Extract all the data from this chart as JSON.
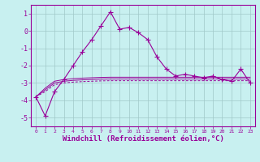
{
  "bg_color": "#c8f0f0",
  "grid_color": "#a0c8c8",
  "line_color": "#990099",
  "xlabel": "Windchill (Refroidissement éolien,°C)",
  "ylim": [
    -5.5,
    1.5
  ],
  "xlim": [
    -0.5,
    23.5
  ],
  "yticks": [
    1,
    0,
    -1,
    -2,
    -3,
    -4,
    -5
  ],
  "xticks": [
    0,
    1,
    2,
    3,
    4,
    5,
    6,
    7,
    8,
    9,
    10,
    11,
    12,
    13,
    14,
    15,
    16,
    17,
    18,
    19,
    20,
    21,
    22,
    23
  ],
  "x": [
    0,
    1,
    2,
    3,
    4,
    5,
    6,
    7,
    8,
    9,
    10,
    11,
    12,
    13,
    14,
    15,
    16,
    17,
    18,
    19,
    20,
    21,
    22,
    23
  ],
  "line1": [
    -3.8,
    -4.9,
    -3.5,
    -2.8,
    -2.0,
    -1.2,
    -0.5,
    0.3,
    1.1,
    0.1,
    0.2,
    -0.1,
    -0.5,
    -1.5,
    -2.2,
    -2.6,
    -2.5,
    -2.6,
    -2.7,
    -2.6,
    -2.8,
    -2.9,
    -2.2,
    -3.0
  ],
  "line2": [
    -3.8,
    -3.5,
    -3.1,
    -3.0,
    -2.95,
    -2.92,
    -2.9,
    -2.88,
    -2.87,
    -2.87,
    -2.87,
    -2.87,
    -2.87,
    -2.87,
    -2.87,
    -2.87,
    -2.87,
    -2.87,
    -2.87,
    -2.87,
    -2.87,
    -2.87,
    -2.87,
    -2.87
  ],
  "line3": [
    -3.8,
    -3.4,
    -3.0,
    -2.9,
    -2.85,
    -2.82,
    -2.8,
    -2.78,
    -2.77,
    -2.77,
    -2.77,
    -2.77,
    -2.77,
    -2.77,
    -2.77,
    -2.77,
    -2.77,
    -2.77,
    -2.77,
    -2.77,
    -2.77,
    -2.77,
    -2.77,
    -2.77
  ],
  "line4": [
    -3.8,
    -3.3,
    -2.9,
    -2.8,
    -2.75,
    -2.72,
    -2.7,
    -2.68,
    -2.67,
    -2.67,
    -2.67,
    -2.67,
    -2.67,
    -2.67,
    -2.67,
    -2.67,
    -2.67,
    -2.67,
    -2.67,
    -2.67,
    -2.67,
    -2.67,
    -2.67,
    -2.67
  ]
}
